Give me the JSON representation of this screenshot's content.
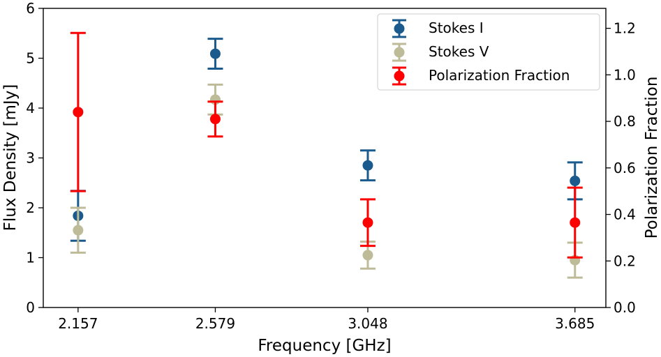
{
  "chart_data": {
    "type": "scatter",
    "title": "",
    "xlabel": "Frequency [GHz]",
    "ylabel": "Flux Density [mJy]",
    "y2label": "Polarization Fraction",
    "categories": [
      "2.157",
      "2.579",
      "3.048",
      "3.685"
    ],
    "x": [
      2.157,
      2.579,
      3.048,
      3.685
    ],
    "xlim": [
      2.05,
      3.78
    ],
    "ylim": [
      0,
      6
    ],
    "y2lim": [
      0,
      1.2857
    ],
    "yticks": [
      0,
      1,
      2,
      3,
      4,
      5,
      6
    ],
    "y2ticks": [
      0.0,
      0.2,
      0.4,
      0.6,
      0.8,
      1.0,
      1.2
    ],
    "yticklabels": [
      "0",
      "1",
      "2",
      "3",
      "4",
      "5",
      "6"
    ],
    "y2ticklabels": [
      "0.0",
      "0.2",
      "0.4",
      "0.6",
      "0.8",
      "1.0",
      "1.2"
    ],
    "legend_position": "top-right",
    "grid": false,
    "series": [
      {
        "name": "Stokes I",
        "color": "#1a5a8c",
        "axis": "left",
        "values": [
          1.84,
          5.09,
          2.85,
          2.54
        ],
        "errors": [
          0.5,
          0.3,
          0.3,
          0.37
        ]
      },
      {
        "name": "Stokes V",
        "color": "#bdbb98",
        "axis": "left",
        "values": [
          1.55,
          4.17,
          1.05,
          0.95
        ],
        "errors": [
          0.45,
          0.3,
          0.27,
          0.35
        ]
      },
      {
        "name": "Polarization Fraction",
        "color": "#ff0000",
        "axis": "right",
        "values": [
          0.84,
          0.81,
          0.365,
          0.365
        ],
        "errors": [
          0.34,
          0.075,
          0.1,
          0.15
        ]
      }
    ]
  }
}
